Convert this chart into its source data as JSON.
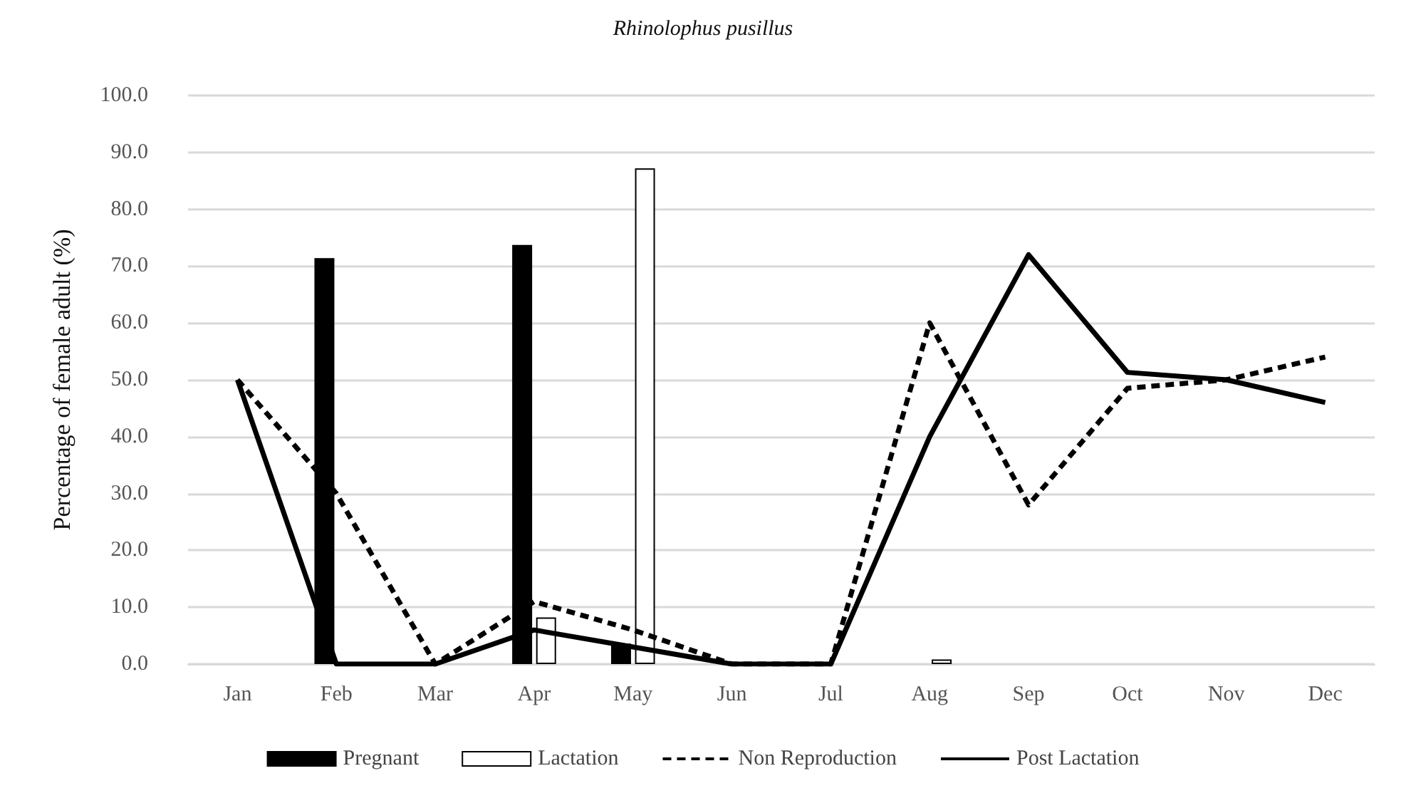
{
  "chart_data": {
    "type": "bar",
    "title": "Rhinolophus pusillus",
    "ylabel": "Percentage of female adult (%)",
    "categories": [
      "Jan",
      "Feb",
      "Mar",
      "Apr",
      "May",
      "Jun",
      "Jul",
      "Aug",
      "Sep",
      "Oct",
      "Nov",
      "Dec"
    ],
    "series": [
      {
        "name": "Pregnant",
        "color": "#000000",
        "values": [
          null,
          71.4,
          null,
          73.7,
          3.6,
          null,
          null,
          null,
          null,
          null,
          null,
          null
        ]
      },
      {
        "name": "Lactation",
        "color": "#ffffff",
        "values": [
          null,
          null,
          null,
          8.2,
          87.2,
          null,
          null,
          0.8,
          null,
          null,
          null,
          null
        ]
      },
      {
        "name": "Non Reproduction",
        "type": "line",
        "color": "#000000",
        "line_style": "dashed",
        "values": [
          50,
          30,
          0,
          11,
          6,
          0,
          0,
          60,
          28,
          48.5,
          50,
          54
        ]
      },
      {
        "name": "Post Lactation",
        "type": "line",
        "color": "#000000",
        "line_style": "solid",
        "values": [
          50,
          0,
          0,
          6,
          3,
          0,
          0,
          40,
          72,
          51.3,
          50,
          46
        ]
      }
    ],
    "ylim": [
      0,
      100
    ],
    "yticks": [
      {
        "value": 0,
        "label": "0.0"
      },
      {
        "value": 10,
        "label": "10.0"
      },
      {
        "value": 20,
        "label": "20.0"
      },
      {
        "value": 30,
        "label": "30.0"
      },
      {
        "value": 40,
        "label": "40.0"
      },
      {
        "value": 50,
        "label": "50.0"
      },
      {
        "value": 60,
        "label": "60.0"
      },
      {
        "value": 70,
        "label": "70.0"
      },
      {
        "value": 80,
        "label": "80.0"
      },
      {
        "value": 90,
        "label": "90.0"
      },
      {
        "value": 100,
        "label": "100.0"
      }
    ],
    "grid": "y",
    "legend": "bottom",
    "marker": "none"
  }
}
